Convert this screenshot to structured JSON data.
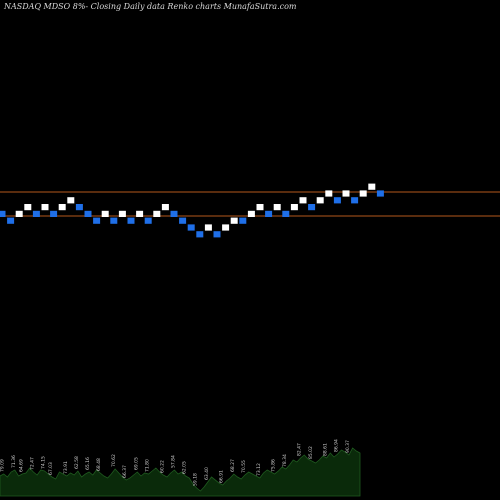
{
  "chart_data": {
    "type": "renko",
    "title": "NASDAQ MDSO 8%-  Closing Daily data  Renko  charts MunafaSutra.com",
    "colors": {
      "background": "#000000",
      "up_brick": "#ffffff",
      "down_brick": "#1f6fe8",
      "reference_line": "#b3581b",
      "volume_fill": "#0a2a0a",
      "volume_line": "#1f5a1f"
    },
    "reference_lines": [
      "upper",
      "lower"
    ],
    "bricks": [
      {
        "dir": "down",
        "level": 0
      },
      {
        "dir": "down",
        "level": -1
      },
      {
        "dir": "up",
        "level": 0
      },
      {
        "dir": "up",
        "level": 1
      },
      {
        "dir": "down",
        "level": 0
      },
      {
        "dir": "up",
        "level": 1
      },
      {
        "dir": "down",
        "level": 0
      },
      {
        "dir": "up",
        "level": 1
      },
      {
        "dir": "up",
        "level": 2
      },
      {
        "dir": "down",
        "level": 1
      },
      {
        "dir": "down",
        "level": 0
      },
      {
        "dir": "down",
        "level": -1
      },
      {
        "dir": "up",
        "level": 0
      },
      {
        "dir": "down",
        "level": -1
      },
      {
        "dir": "up",
        "level": 0
      },
      {
        "dir": "down",
        "level": -1
      },
      {
        "dir": "up",
        "level": 0
      },
      {
        "dir": "down",
        "level": -1
      },
      {
        "dir": "up",
        "level": 0
      },
      {
        "dir": "up",
        "level": 1
      },
      {
        "dir": "down",
        "level": 0
      },
      {
        "dir": "down",
        "level": -1
      },
      {
        "dir": "down",
        "level": -2
      },
      {
        "dir": "down",
        "level": -3
      },
      {
        "dir": "up",
        "level": -2
      },
      {
        "dir": "down",
        "level": -3
      },
      {
        "dir": "up",
        "level": -2
      },
      {
        "dir": "up",
        "level": -1
      },
      {
        "dir": "down",
        "level": -1
      },
      {
        "dir": "up",
        "level": 0
      },
      {
        "dir": "up",
        "level": 1
      },
      {
        "dir": "down",
        "level": 0
      },
      {
        "dir": "up",
        "level": 1
      },
      {
        "dir": "down",
        "level": 0
      },
      {
        "dir": "up",
        "level": 1
      },
      {
        "dir": "up",
        "level": 2
      },
      {
        "dir": "down",
        "level": 1
      },
      {
        "dir": "up",
        "level": 2
      },
      {
        "dir": "up",
        "level": 3
      },
      {
        "dir": "down",
        "level": 2
      },
      {
        "dir": "up",
        "level": 3
      },
      {
        "dir": "down",
        "level": 2
      },
      {
        "dir": "up",
        "level": 3
      },
      {
        "dir": "up",
        "level": 4
      },
      {
        "dir": "down",
        "level": 3
      }
    ],
    "volume": {
      "heights": [
        20,
        22,
        19,
        24,
        26,
        20,
        22,
        23,
        28,
        24,
        21,
        26,
        25,
        22,
        19,
        17,
        24,
        22,
        20,
        23,
        21,
        25,
        19,
        22,
        24,
        21,
        26,
        23,
        20,
        18,
        22,
        27,
        23,
        19,
        16,
        18,
        21,
        24,
        20,
        23,
        22,
        25,
        28,
        24,
        21,
        19,
        23,
        26,
        22,
        24,
        20,
        18,
        12,
        8,
        5,
        9,
        14,
        19,
        16,
        13,
        11,
        15,
        18,
        22,
        19,
        17,
        21,
        24,
        22,
        20,
        18,
        23,
        26,
        24,
        22,
        25,
        29,
        27,
        31,
        36,
        34,
        38,
        41,
        37,
        35,
        33,
        36,
        40,
        38,
        43,
        39,
        42,
        46,
        44,
        41,
        48,
        45,
        43
      ]
    },
    "volume_labels": [
      {
        "text": "79.09",
        "col": 1
      },
      {
        "text": "71.36",
        "col": 4
      },
      {
        "text": "64.69",
        "col": 6
      },
      {
        "text": "72.47",
        "col": 9
      },
      {
        "text": "74.15",
        "col": 12
      },
      {
        "text": "67.03",
        "col": 14
      },
      {
        "text": "73.91",
        "col": 18
      },
      {
        "text": "62.58",
        "col": 21
      },
      {
        "text": "65.16",
        "col": 24
      },
      {
        "text": "68.48",
        "col": 27
      },
      {
        "text": "70.62",
        "col": 31
      },
      {
        "text": "66.37",
        "col": 34
      },
      {
        "text": "69.05",
        "col": 37
      },
      {
        "text": "71.80",
        "col": 40
      },
      {
        "text": "60.22",
        "col": 44
      },
      {
        "text": "57.84",
        "col": 47
      },
      {
        "text": "62.05",
        "col": 50
      },
      {
        "text": "59.18",
        "col": 53
      },
      {
        "text": "63.40",
        "col": 56
      },
      {
        "text": "66.91",
        "col": 60
      },
      {
        "text": "68.27",
        "col": 63
      },
      {
        "text": "70.55",
        "col": 66
      },
      {
        "text": "73.12",
        "col": 70
      },
      {
        "text": "75.86",
        "col": 74
      },
      {
        "text": "78.34",
        "col": 77
      },
      {
        "text": "82.47",
        "col": 81
      },
      {
        "text": "85.02",
        "col": 84
      },
      {
        "text": "88.61",
        "col": 88
      },
      {
        "text": "86.94",
        "col": 91
      },
      {
        "text": "90.37",
        "col": 94
      }
    ]
  }
}
